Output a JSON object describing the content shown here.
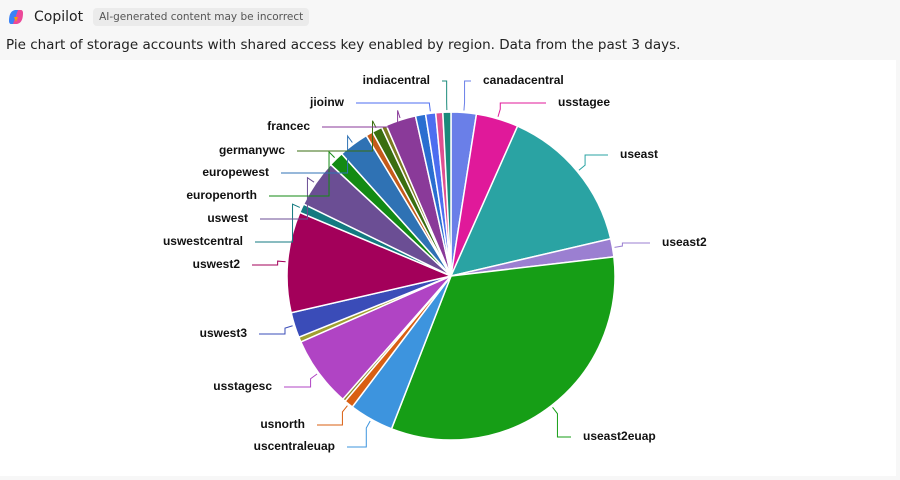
{
  "header": {
    "app": "Copilot",
    "badge": "AI-generated content may be incorrect"
  },
  "caption": "Pie chart of storage accounts with shared access key enabled by region. Data from the past 3 days.",
  "chart_data": {
    "type": "pie",
    "categories": [
      "canadacentral",
      "usstagee",
      "useast",
      "useast2",
      "useast2euap",
      "uscentraleuap",
      "usnorth",
      null,
      "usstagesc",
      null,
      "uswest3",
      "uswest2",
      "uswestcentral",
      "uswest",
      "europenorth",
      "europewest",
      null,
      "germanywc",
      null,
      "francec",
      null,
      "jioinw",
      null,
      "indiacentral"
    ],
    "values": [
      2.5,
      4.2,
      14.8,
      1.8,
      33,
      4.4,
      0.9,
      0.3,
      7,
      0.5,
      2.5,
      10,
      0.9,
      4.7,
      1.5,
      3,
      0.7,
      1,
      0.5,
      3,
      1,
      1,
      0.7,
      0.8
    ],
    "colors": [
      "#6a7fe8",
      "#e0199a",
      "#2aa3a3",
      "#9b7fd1",
      "#169e16",
      "#3d94de",
      "#d95f12",
      "#8a8a2a",
      "#b044c4",
      "#a0a030",
      "#3a4cb8",
      "#a3005a",
      "#137a80",
      "#6b4e94",
      "#138a13",
      "#2f72b4",
      "#c45a1a",
      "#3a6e10",
      "#7a7a20",
      "#8a3a99",
      "#2a6ed0",
      "#4d6ef0",
      "#e05090",
      "#1a8a7a"
    ]
  }
}
